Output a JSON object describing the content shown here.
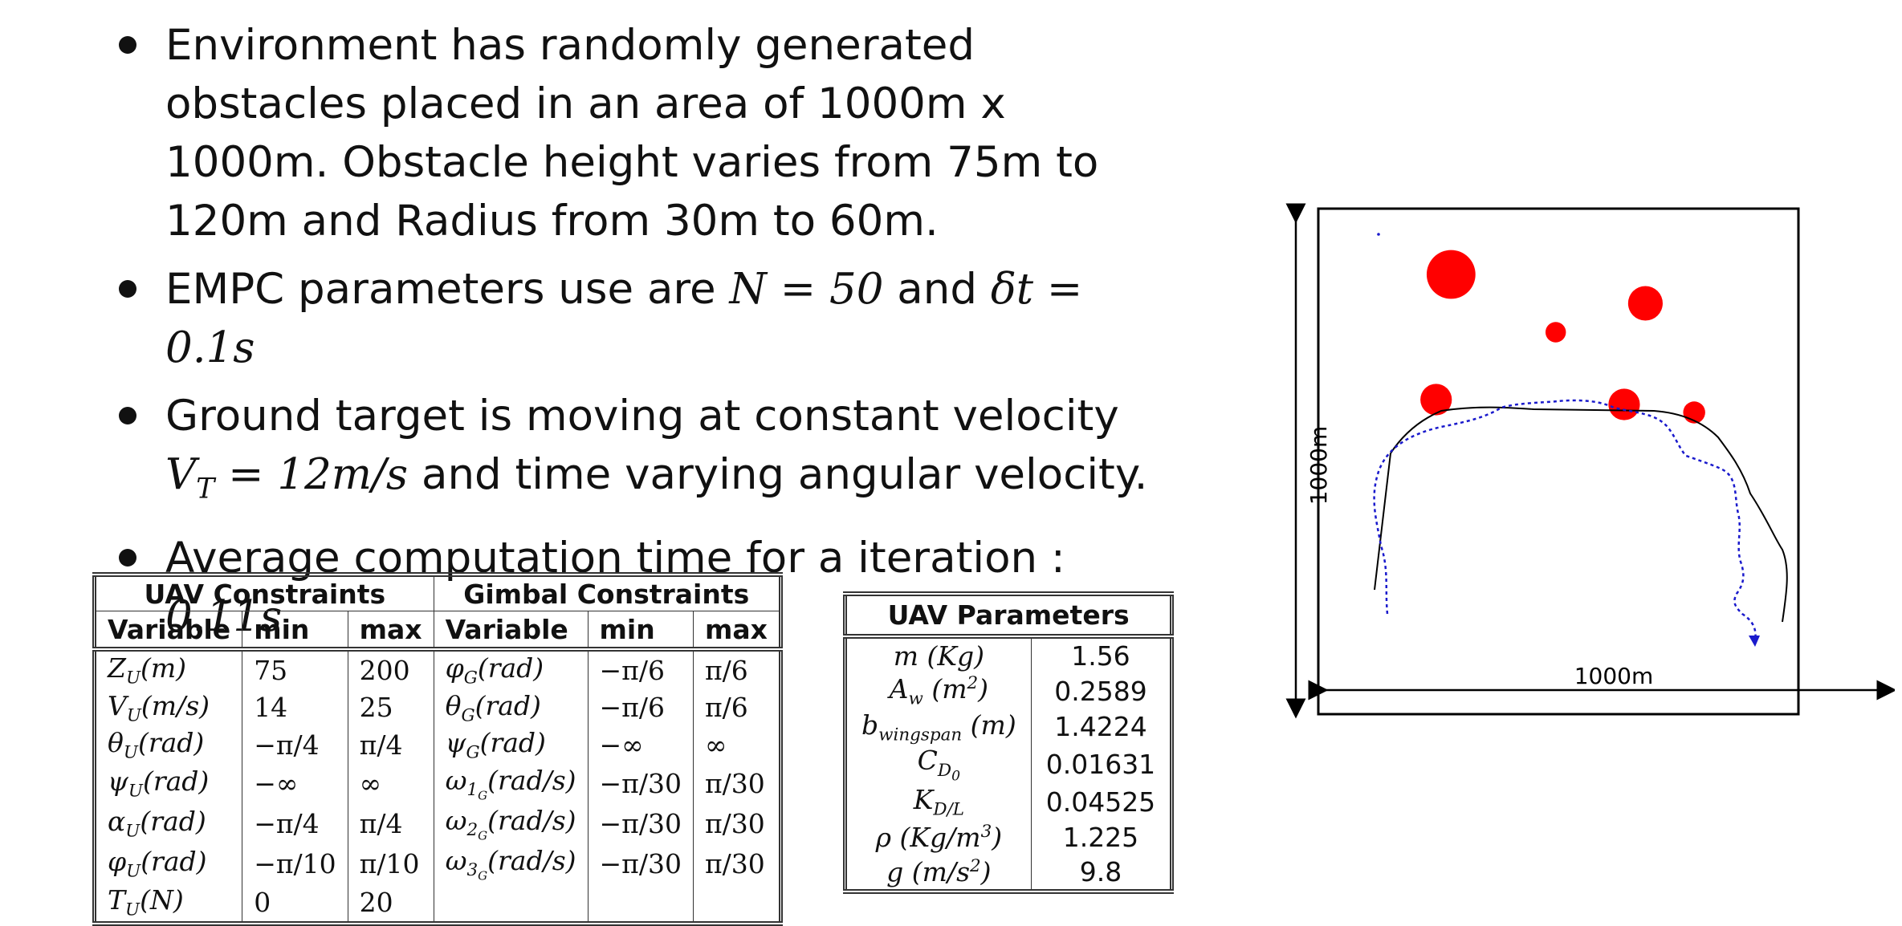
{
  "bullets": [
    {
      "text": "Environment has randomly generated obstacles placed in an area of 1000m x 1000m. Obstacle height varies from 75m to 120m and Radius from 30m to 60m."
    },
    {
      "prefix": "EMPC parameters use are ",
      "eq1": "N = 50",
      "mid": " and ",
      "eq2": "δt = 0.1s"
    },
    {
      "prefix": "Ground target is moving at constant velocity ",
      "eq": "V_T = 12m/s",
      "suffix": " and time varying angular velocity."
    },
    {
      "prefix": "Average computation time for a iteration : ",
      "value": "0.11s"
    }
  ],
  "constraints_table": {
    "group_uav": "UAV Constraints",
    "group_gimbal": "Gimbal Constraints",
    "headers": [
      "Variable",
      "min",
      "max",
      "Variable",
      "min",
      "max"
    ],
    "rows": [
      [
        "Z_U(m)",
        "75",
        "200",
        "φ_G(rad)",
        "−π/6",
        "π/6"
      ],
      [
        "V_U(m/s)",
        "14",
        "25",
        "θ_G(rad)",
        "−π/6",
        "π/6"
      ],
      [
        "θ_U(rad)",
        "−π/4",
        "π/4",
        "ψ_G(rad)",
        "−∞",
        "∞"
      ],
      [
        "ψ_U(rad)",
        "−∞",
        "∞",
        "ω_1G(rad/s)",
        "−π/30",
        "π/30"
      ],
      [
        "α_U(rad)",
        "−π/4",
        "π/4",
        "ω_2G(rad/s)",
        "−π/30",
        "π/30"
      ],
      [
        "φ_U(rad)",
        "−π/10",
        "π/10",
        "ω_3G(rad/s)",
        "−π/30",
        "π/30"
      ],
      [
        "T_U(N)",
        "0",
        "20",
        "",
        "",
        ""
      ]
    ]
  },
  "parameters_table": {
    "title": "UAV Parameters",
    "rows": [
      [
        "m (Kg)",
        "1.56"
      ],
      [
        "A_w (m²)",
        "0.2589"
      ],
      [
        "b_wingspan (m)",
        "1.4224"
      ],
      [
        "C_D0",
        "0.01631"
      ],
      [
        "K_D/L",
        "0.04525"
      ],
      [
        "ρ (Kg/m³)",
        "1.225"
      ],
      [
        "g (m/s²)",
        "9.8"
      ]
    ]
  },
  "figure": {
    "xlabel": "1000m",
    "ylabel": "1000m",
    "obstacle_color": "#ff0000",
    "uav_path_color": "#000000",
    "target_path_color": "#1a1acc"
  }
}
